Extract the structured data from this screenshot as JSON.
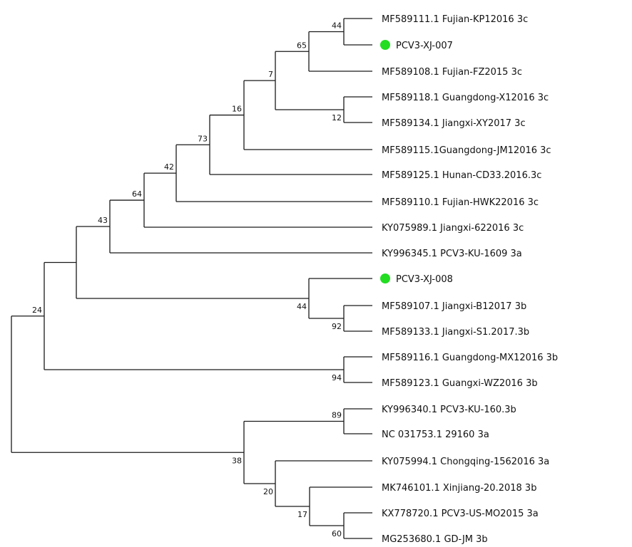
{
  "tree": {
    "marker_color": "#22dd22",
    "leaves": [
      {
        "id": "L1",
        "label": "MF589111.1 Fujian-KP12016 3c",
        "marked": false
      },
      {
        "id": "L2",
        "label": "PCV3-XJ-007",
        "marked": true
      },
      {
        "id": "L3",
        "label": "MF589108.1 Fujian-FZ2015 3c",
        "marked": false
      },
      {
        "id": "L4",
        "label": "MF589118.1 Guangdong-X12016 3c",
        "marked": false
      },
      {
        "id": "L5",
        "label": "MF589134.1 Jiangxi-XY2017 3c",
        "marked": false
      },
      {
        "id": "L6",
        "label": "MF589115.1Guangdong-JM12016 3c",
        "marked": false
      },
      {
        "id": "L7",
        "label": "MF589125.1 Hunan-CD33.2016.3c",
        "marked": false
      },
      {
        "id": "L8",
        "label": "MF589110.1 Fujian-HWK22016 3c",
        "marked": false
      },
      {
        "id": "L9",
        "label": "KY075989.1 Jiangxi-622016 3c",
        "marked": false
      },
      {
        "id": "L10",
        "label": "KY996345.1 PCV3-KU-1609 3a",
        "marked": false
      },
      {
        "id": "L11",
        "label": "PCV3-XJ-008",
        "marked": true
      },
      {
        "id": "L12",
        "label": "MF589107.1 Jiangxi-B12017 3b",
        "marked": false
      },
      {
        "id": "L13",
        "label": "MF589133.1 Jiangxi-S1.2017.3b",
        "marked": false
      },
      {
        "id": "L14",
        "label": "MF589116.1 Guangdong-MX12016 3b",
        "marked": false
      },
      {
        "id": "L15",
        "label": "MF589123.1 Guangxi-WZ2016 3b",
        "marked": false
      },
      {
        "id": "L16",
        "label": "KY996340.1 PCV3-KU-160.3b",
        "marked": false
      },
      {
        "id": "L17",
        "label": "NC 031753.1 29160 3a",
        "marked": false
      },
      {
        "id": "L18",
        "label": "KY075994.1 Chongqing-1562016 3a",
        "marked": false
      },
      {
        "id": "L19",
        "label": "MK746101.1 Xinjiang-20.2018 3b",
        "marked": false
      },
      {
        "id": "L20",
        "label": "KX778720.1 PCV3-US-MO2015 3a",
        "marked": false
      },
      {
        "id": "L21",
        "label": "MG253680.1 GD-JM 3b",
        "marked": false
      }
    ],
    "nodes": [
      {
        "id": "n44a",
        "support": "44",
        "children": [
          "L1",
          "L2"
        ]
      },
      {
        "id": "n65",
        "support": "65",
        "children": [
          "n44a",
          "L3"
        ]
      },
      {
        "id": "n12",
        "support": "12",
        "children": [
          "L4",
          "L5"
        ]
      },
      {
        "id": "n7",
        "support": "7",
        "children": [
          "n65",
          "n12"
        ]
      },
      {
        "id": "n16",
        "support": "16",
        "children": [
          "n7",
          "L6"
        ]
      },
      {
        "id": "n73",
        "support": "73",
        "children": [
          "n16",
          "L7"
        ]
      },
      {
        "id": "n42",
        "support": "42",
        "children": [
          "n73",
          "L8"
        ]
      },
      {
        "id": "n64",
        "support": "64",
        "children": [
          "n42",
          "L9"
        ]
      },
      {
        "id": "n43",
        "support": "43",
        "children": [
          "n64",
          "L10"
        ]
      },
      {
        "id": "n92",
        "support": "92",
        "children": [
          "L12",
          "L13"
        ]
      },
      {
        "id": "n44b",
        "support": "44",
        "children": [
          "L11",
          "n92"
        ]
      },
      {
        "id": "nA",
        "support": "",
        "children": [
          "n43",
          "n44b"
        ]
      },
      {
        "id": "n94",
        "support": "94",
        "children": [
          "L14",
          "L15"
        ]
      },
      {
        "id": "n24",
        "support": "24",
        "children": [
          "nA",
          "n94"
        ]
      },
      {
        "id": "n89",
        "support": "89",
        "children": [
          "L16",
          "L17"
        ]
      },
      {
        "id": "n60",
        "support": "60",
        "children": [
          "L20",
          "L21"
        ]
      },
      {
        "id": "n17",
        "support": "17",
        "children": [
          "L19",
          "n60"
        ]
      },
      {
        "id": "n20",
        "support": "20",
        "children": [
          "L18",
          "n17"
        ]
      },
      {
        "id": "n38",
        "support": "38",
        "children": [
          "n89",
          "n20"
        ]
      },
      {
        "id": "root",
        "support": "",
        "children": [
          "n24",
          "n38"
        ]
      }
    ]
  }
}
